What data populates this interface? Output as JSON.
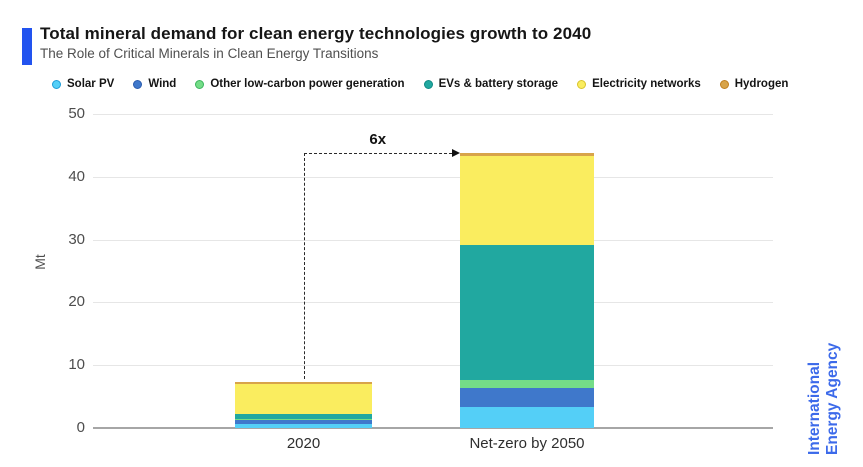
{
  "header": {
    "title": "Total mineral demand for clean energy technologies growth to 2040",
    "subtitle": "The Role of Critical Minerals in Clean Energy Transitions",
    "accent_color": "#2253ef"
  },
  "chart_data": {
    "type": "bar",
    "stacked": true,
    "title": "Total mineral demand for clean energy technologies growth to 2040",
    "categories": [
      "2020",
      "Net-zero by 2050"
    ],
    "series": [
      {
        "name": "Solar PV",
        "color": "#54cff7",
        "ring": "#1e9cd7",
        "values": [
          0.6,
          3.4
        ]
      },
      {
        "name": "Wind",
        "color": "#3f78cb",
        "ring": "#2b5cae",
        "values": [
          0.6,
          2.9
        ]
      },
      {
        "name": "Other low-carbon power generation",
        "color": "#74dd87",
        "ring": "#3cb55e",
        "values": [
          0.2,
          1.4
        ]
      },
      {
        "name": "EVs & battery storage",
        "color": "#21a8a0",
        "ring": "#0f8a84",
        "values": [
          0.9,
          21.4
        ]
      },
      {
        "name": "Electricity networks",
        "color": "#faed5f",
        "ring": "#d9c42c",
        "values": [
          4.7,
          14.2
        ]
      },
      {
        "name": "Hydrogen",
        "color": "#d8a44a",
        "ring": "#c07f1f",
        "values": [
          0.3,
          0.5
        ]
      }
    ],
    "xlabel": "",
    "ylabel": "Mt",
    "ylim": [
      0,
      50
    ],
    "yticks": [
      0,
      10,
      20,
      30,
      40,
      50
    ],
    "grid": true,
    "legend_position": "top",
    "annotation": {
      "text": "6x",
      "from_category": "2020",
      "to_category": "Net-zero by 2050"
    }
  },
  "footer": {
    "logo_line1": "International",
    "logo_line2": "Energy Agency",
    "logo_color": "#3c6aea"
  }
}
